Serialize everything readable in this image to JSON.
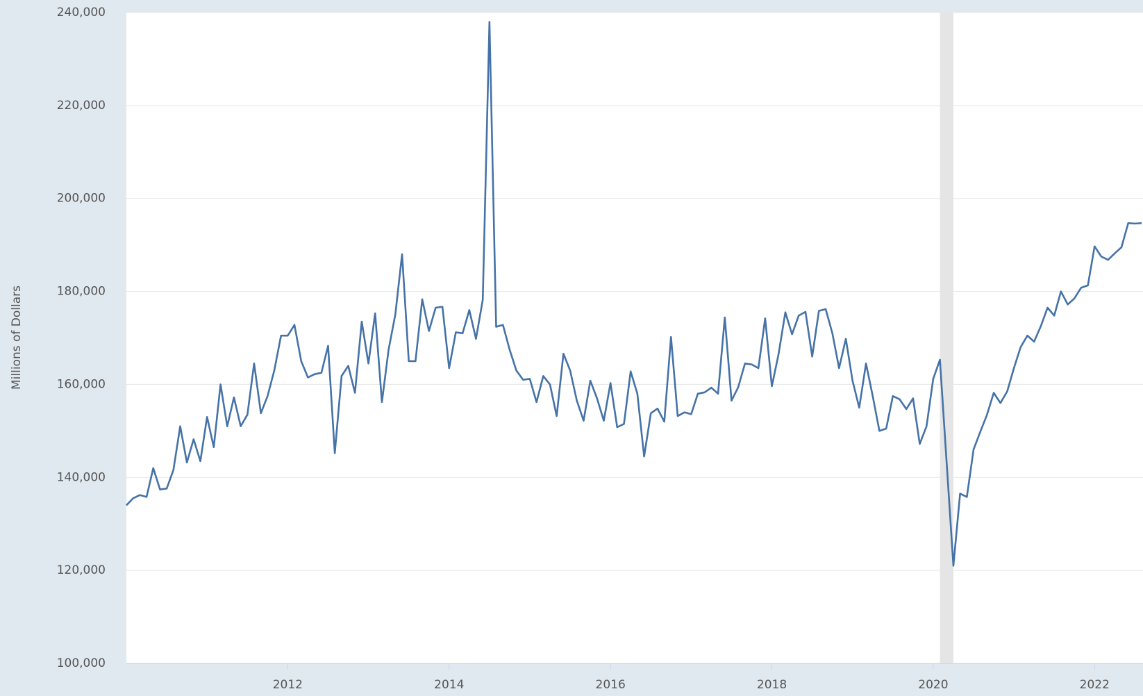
{
  "chart_data": {
    "type": "line",
    "y_axis_label": "Millions of Dollars",
    "xlim": [
      2010,
      2022.6
    ],
    "xticks": [
      2012,
      2014,
      2016,
      2018,
      2020,
      2022
    ],
    "ylim": [
      100000,
      240000
    ],
    "yticks": [
      {
        "value": 100000,
        "label": "100,000"
      },
      {
        "value": 120000,
        "label": "120,000"
      },
      {
        "value": 140000,
        "label": "140,000"
      },
      {
        "value": 160000,
        "label": "160,000"
      },
      {
        "value": 180000,
        "label": "180,000"
      },
      {
        "value": 200000,
        "label": "200,000"
      },
      {
        "value": 220000,
        "label": "220,000"
      },
      {
        "value": 240000,
        "label": "240,000"
      }
    ],
    "grid": true,
    "shaded_periods": [
      [
        2020.083,
        2020.25
      ]
    ],
    "x": [
      2010,
      2010.083,
      2010.167,
      2010.25,
      2010.333,
      2010.417,
      2010.5,
      2010.583,
      2010.667,
      2010.75,
      2010.833,
      2010.917,
      2011,
      2011.083,
      2011.167,
      2011.25,
      2011.333,
      2011.417,
      2011.5,
      2011.583,
      2011.667,
      2011.75,
      2011.833,
      2011.917,
      2012,
      2012.083,
      2012.167,
      2012.25,
      2012.333,
      2012.417,
      2012.5,
      2012.583,
      2012.667,
      2012.75,
      2012.833,
      2012.917,
      2013,
      2013.083,
      2013.167,
      2013.25,
      2013.333,
      2013.417,
      2013.5,
      2013.583,
      2013.667,
      2013.75,
      2013.833,
      2013.917,
      2014,
      2014.083,
      2014.167,
      2014.25,
      2014.333,
      2014.417,
      2014.5,
      2014.583,
      2014.667,
      2014.75,
      2014.833,
      2014.917,
      2015,
      2015.083,
      2015.167,
      2015.25,
      2015.333,
      2015.417,
      2015.5,
      2015.583,
      2015.667,
      2015.75,
      2015.833,
      2015.917,
      2016,
      2016.083,
      2016.167,
      2016.25,
      2016.333,
      2016.417,
      2016.5,
      2016.583,
      2016.667,
      2016.75,
      2016.833,
      2016.917,
      2017,
      2017.083,
      2017.167,
      2017.25,
      2017.333,
      2017.417,
      2017.5,
      2017.583,
      2017.667,
      2017.75,
      2017.833,
      2017.917,
      2018,
      2018.083,
      2018.167,
      2018.25,
      2018.333,
      2018.417,
      2018.5,
      2018.583,
      2018.667,
      2018.75,
      2018.833,
      2018.917,
      2019,
      2019.083,
      2019.167,
      2019.25,
      2019.333,
      2019.417,
      2019.5,
      2019.583,
      2019.667,
      2019.75,
      2019.833,
      2019.917,
      2020,
      2020.083,
      2020.167,
      2020.25,
      2020.333,
      2020.417,
      2020.5,
      2020.583,
      2020.667,
      2020.75,
      2020.833,
      2020.917,
      2021,
      2021.083,
      2021.167,
      2021.25,
      2021.333,
      2021.417,
      2021.5,
      2021.583,
      2021.667,
      2021.75,
      2021.833,
      2021.917,
      2022,
      2022.083,
      2022.167,
      2022.25,
      2022.333,
      2022.417,
      2022.5,
      2022.583
    ],
    "series": [
      {
        "color": "#4572a7",
        "values": [
          134000,
          135500,
          136200,
          135800,
          142000,
          137400,
          137600,
          141600,
          151000,
          143200,
          148200,
          143500,
          153000,
          146500,
          160000,
          151000,
          157200,
          151000,
          153500,
          164500,
          153800,
          157500,
          163000,
          170500,
          170500,
          172800,
          165000,
          161500,
          162200,
          162500,
          168300,
          145200,
          161800,
          164000,
          158200,
          173500,
          164500,
          175300,
          156200,
          167500,
          175000,
          188000,
          165000,
          165000,
          178300,
          171500,
          176500,
          176700,
          163500,
          171200,
          171000,
          176000,
          169800,
          178200,
          238000,
          172400,
          172800,
          167500,
          163000,
          161000,
          161200,
          156200,
          161800,
          160000,
          153200,
          166600,
          163000,
          156500,
          152200,
          160800,
          157000,
          152200,
          160300,
          150800,
          151500,
          162800,
          158000,
          144500,
          153800,
          154800,
          152000,
          170200,
          153200,
          154000,
          153600,
          158000,
          158300,
          159300,
          158000,
          174400,
          156500,
          159400,
          164500,
          164300,
          163500,
          174200,
          159600,
          166500,
          175500,
          170800,
          174800,
          175600,
          166000,
          175800,
          176200,
          171000,
          163500,
          169800,
          160800,
          155000,
          164500,
          157500,
          150000,
          150500,
          157500,
          156800,
          154700,
          157000,
          147200,
          151000,
          161200,
          165300,
          143000,
          121000,
          136500,
          135800,
          146000,
          149800,
          153500,
          158200,
          156000,
          158500,
          163500,
          168000,
          170500,
          169200,
          172500,
          176500,
          174800,
          180000,
          177200,
          178500,
          180800,
          181300,
          189700,
          187500,
          186800,
          188200,
          189500,
          194700,
          194600,
          194700
        ]
      }
    ]
  }
}
